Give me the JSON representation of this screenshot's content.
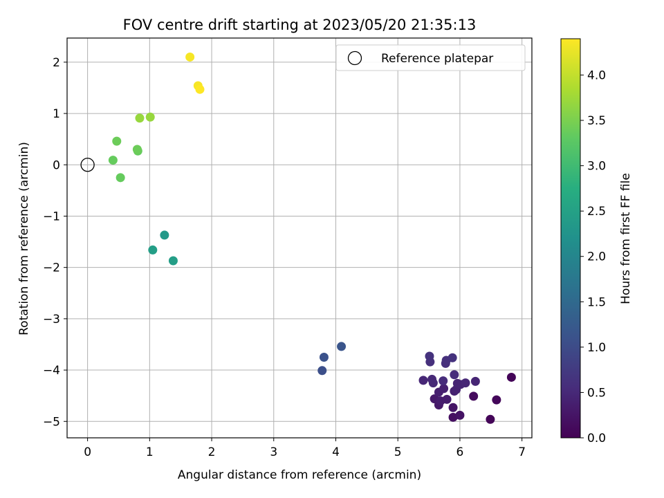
{
  "chart_data": {
    "type": "scatter",
    "title": "FOV centre drift starting at 2023/05/20 21:35:13",
    "xlabel": "Angular distance from reference (arcmin)",
    "ylabel": "Rotation from reference (arcmin)",
    "xlim": [
      -0.33,
      7.16
    ],
    "ylim": [
      -5.32,
      2.47
    ],
    "xticks": [
      0,
      1,
      2,
      3,
      4,
      5,
      6,
      7
    ],
    "xtick_labels": [
      "0",
      "1",
      "2",
      "3",
      "4",
      "5",
      "6",
      "7"
    ],
    "yticks": [
      2,
      1,
      0,
      -1,
      -2,
      -3,
      -4,
      -5
    ],
    "ytick_labels": [
      "2",
      "1",
      "0",
      "−1",
      "−2",
      "−3",
      "−4",
      "−5"
    ],
    "grid": true,
    "legend": {
      "location": "upper right",
      "label": "Reference platepar"
    },
    "reference_point": {
      "x": 0,
      "y": 0
    },
    "colorbar": {
      "label": "Hours from first FF file",
      "colormap": "viridis",
      "range": [
        0.0,
        4.4
      ],
      "ticks": [
        0.0,
        0.5,
        1.0,
        1.5,
        2.0,
        2.5,
        3.0,
        3.5,
        4.0
      ],
      "tick_labels": [
        "0.0",
        "0.5",
        "1.0",
        "1.5",
        "2.0",
        "2.5",
        "3.0",
        "3.5",
        "4.0"
      ]
    },
    "points": [
      {
        "x": 6.49,
        "y": -4.96,
        "hours": 0.05
      },
      {
        "x": 6.83,
        "y": -4.14,
        "hours": 0.05
      },
      {
        "x": 6.59,
        "y": -4.58,
        "hours": 0.08
      },
      {
        "x": 6.22,
        "y": -4.51,
        "hours": 0.12
      },
      {
        "x": 5.89,
        "y": -4.92,
        "hours": 0.18
      },
      {
        "x": 6.0,
        "y": -4.88,
        "hours": 0.22
      },
      {
        "x": 5.89,
        "y": -4.73,
        "hours": 0.25
      },
      {
        "x": 5.66,
        "y": -4.68,
        "hours": 0.3
      },
      {
        "x": 5.59,
        "y": -4.56,
        "hours": 0.3
      },
      {
        "x": 5.69,
        "y": -4.6,
        "hours": 0.35
      },
      {
        "x": 5.79,
        "y": -4.57,
        "hours": 0.35
      },
      {
        "x": 5.66,
        "y": -4.43,
        "hours": 0.38
      },
      {
        "x": 5.74,
        "y": -4.36,
        "hours": 0.4
      },
      {
        "x": 5.91,
        "y": -4.41,
        "hours": 0.4
      },
      {
        "x": 5.94,
        "y": -4.38,
        "hours": 0.42
      },
      {
        "x": 5.96,
        "y": -4.26,
        "hours": 0.45
      },
      {
        "x": 6.01,
        "y": -4.28,
        "hours": 0.45
      },
      {
        "x": 6.09,
        "y": -4.25,
        "hours": 0.48
      },
      {
        "x": 6.25,
        "y": -4.22,
        "hours": 0.45
      },
      {
        "x": 5.41,
        "y": -4.2,
        "hours": 0.48
      },
      {
        "x": 5.55,
        "y": -4.18,
        "hours": 0.5
      },
      {
        "x": 5.57,
        "y": -4.25,
        "hours": 0.5
      },
      {
        "x": 5.73,
        "y": -4.21,
        "hours": 0.55
      },
      {
        "x": 5.91,
        "y": -4.09,
        "hours": 0.55
      },
      {
        "x": 5.77,
        "y": -3.87,
        "hours": 0.58
      },
      {
        "x": 5.78,
        "y": -3.81,
        "hours": 0.6
      },
      {
        "x": 5.52,
        "y": -3.84,
        "hours": 0.6
      },
      {
        "x": 5.51,
        "y": -3.73,
        "hours": 0.62
      },
      {
        "x": 5.88,
        "y": -3.76,
        "hours": 0.62
      },
      {
        "x": 3.78,
        "y": -4.01,
        "hours": 1.05
      },
      {
        "x": 3.81,
        "y": -3.75,
        "hours": 1.1
      },
      {
        "x": 4.09,
        "y": -3.54,
        "hours": 1.15
      },
      {
        "x": 1.24,
        "y": -1.37,
        "hours": 2.35
      },
      {
        "x": 1.05,
        "y": -1.66,
        "hours": 2.45
      },
      {
        "x": 1.38,
        "y": -1.87,
        "hours": 2.45
      },
      {
        "x": 0.53,
        "y": -0.25,
        "hours": 3.35
      },
      {
        "x": 0.41,
        "y": 0.09,
        "hours": 3.35
      },
      {
        "x": 0.81,
        "y": 0.27,
        "hours": 3.35
      },
      {
        "x": 0.8,
        "y": 0.3,
        "hours": 3.4
      },
      {
        "x": 0.47,
        "y": 0.46,
        "hours": 3.4
      },
      {
        "x": 0.84,
        "y": 0.91,
        "hours": 3.7
      },
      {
        "x": 1.01,
        "y": 0.93,
        "hours": 3.7
      },
      {
        "x": 1.65,
        "y": 2.1,
        "hours": 4.35
      },
      {
        "x": 1.78,
        "y": 1.54,
        "hours": 4.35
      },
      {
        "x": 1.81,
        "y": 1.47,
        "hours": 4.4
      }
    ]
  }
}
